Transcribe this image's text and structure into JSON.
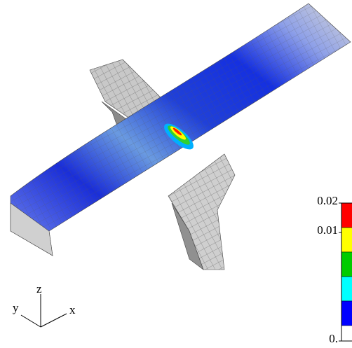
{
  "colorbar": {
    "ticks": [
      0.02,
      0.01,
      {
        "value": 0,
        "label": "0."
      }
    ],
    "colors": [
      "#ff0000",
      "#ffff00",
      "#00cc00",
      "#00ffff",
      "#0000ff"
    ]
  },
  "triad": {
    "z": "z",
    "y": "y",
    "x": "x"
  }
}
